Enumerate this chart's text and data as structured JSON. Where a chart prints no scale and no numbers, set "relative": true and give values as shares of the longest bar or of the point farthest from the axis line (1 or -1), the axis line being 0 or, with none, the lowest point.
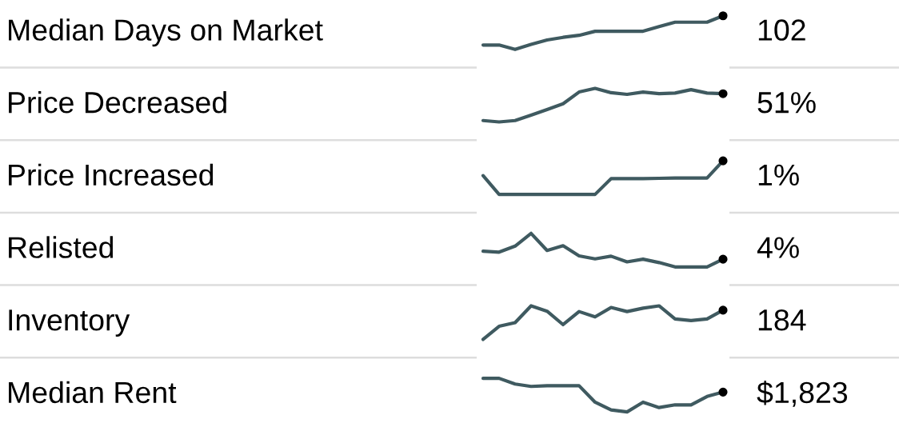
{
  "chart_data": [
    {
      "type": "line",
      "ylabel": "Median Days on Market",
      "annotations": [
        "102"
      ],
      "relative": true,
      "color": "#3f5a60",
      "categories": [
        null,
        null,
        null,
        null,
        null,
        null,
        null,
        null,
        null,
        null,
        null,
        null,
        null,
        null,
        null,
        null
      ],
      "values": [
        0.13,
        0.13,
        0,
        0.15,
        0.28,
        0.36,
        0.42,
        0.54,
        0.54,
        0.54,
        0.54,
        0.68,
        0.81,
        0.81,
        0.81,
        1
      ]
    },
    {
      "type": "line",
      "ylabel": "Price Decreased",
      "annotations": [
        "51%"
      ],
      "relative": true,
      "color": "#3f5a60",
      "categories": [
        null,
        null,
        null,
        null,
        null,
        null,
        null,
        null,
        null,
        null,
        null,
        null,
        null,
        null,
        null,
        null
      ],
      "values": [
        0.04,
        0,
        0.04,
        0.2,
        0.37,
        0.54,
        0.89,
        1,
        0.87,
        0.82,
        0.89,
        0.84,
        0.86,
        0.96,
        0.86,
        0.84
      ]
    },
    {
      "type": "line",
      "ylabel": "Price Increased",
      "annotations": [
        "1%"
      ],
      "relative": true,
      "color": "#3f5a60",
      "categories": [
        null,
        null,
        null,
        null,
        null,
        null,
        null,
        null,
        null,
        null,
        null,
        null,
        null,
        null,
        null,
        null
      ],
      "values": [
        0.56,
        0,
        0,
        0,
        0,
        0,
        0,
        0,
        0.47,
        0.47,
        0.47,
        0.48,
        0.49,
        0.49,
        0.49,
        1
      ]
    },
    {
      "type": "line",
      "ylabel": "Relisted",
      "annotations": [
        "4%"
      ],
      "relative": true,
      "color": "#3f5a60",
      "categories": [
        null,
        null,
        null,
        null,
        null,
        null,
        null,
        null,
        null,
        null,
        null,
        null,
        null,
        null,
        null,
        null
      ],
      "values": [
        0.47,
        0.44,
        0.62,
        1,
        0.49,
        0.63,
        0.33,
        0.24,
        0.32,
        0.15,
        0.23,
        0.13,
        0,
        0,
        0,
        0.23
      ]
    },
    {
      "type": "line",
      "ylabel": "Inventory",
      "annotations": [
        "184"
      ],
      "relative": true,
      "color": "#3f5a60",
      "categories": [
        null,
        null,
        null,
        null,
        null,
        null,
        null,
        null,
        null,
        null,
        null,
        null,
        null,
        null,
        null,
        null
      ],
      "values": [
        0,
        0.39,
        0.5,
        1,
        0.84,
        0.44,
        0.83,
        0.67,
        0.95,
        0.83,
        0.93,
        1,
        0.61,
        0.56,
        0.61,
        0.87
      ]
    },
    {
      "type": "line",
      "ylabel": "Median Rent",
      "annotations": [
        "$1,823"
      ],
      "relative": true,
      "color": "#3f5a60",
      "categories": [
        null,
        null,
        null,
        null,
        null,
        null,
        null,
        null,
        null,
        null,
        null,
        null,
        null,
        null,
        null,
        null
      ],
      "values": [
        1,
        1,
        0.83,
        0.76,
        0.78,
        0.78,
        0.78,
        0.29,
        0.06,
        0,
        0.29,
        0.13,
        0.21,
        0.21,
        0.46,
        0.59
      ]
    }
  ]
}
